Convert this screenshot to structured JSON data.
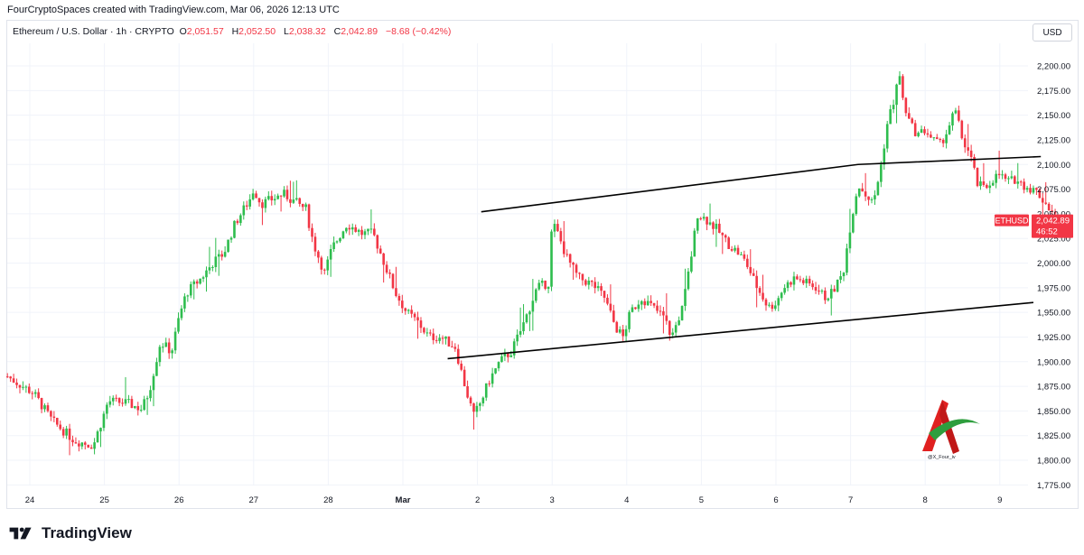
{
  "header": {
    "attribution": "FourCryptoSpaces created with TradingView.com, Mar 06, 2026 12:13 UTC"
  },
  "legend": {
    "symbol": "Ethereum / U.S. Dollar · 1h · CRYPTO",
    "o_label": "O",
    "o_value": "2,051.57",
    "h_label": "H",
    "h_value": "2,052.50",
    "l_label": "L",
    "l_value": "2,038.32",
    "c_label": "C",
    "c_value": "2,042.89",
    "change": "−8.68 (−0.42%)"
  },
  "currency_button": "USD",
  "price_tag": {
    "symbol": "ETHUSD",
    "price": "2,042.89",
    "countdown": "46:52"
  },
  "watermark": {
    "handle": "@X_Four_iv"
  },
  "brand": {
    "name": "TradingView"
  },
  "colors": {
    "up": "#22ab94",
    "up_bright": "#2ebd4e",
    "down": "#f23645",
    "grid": "#f0f3fa",
    "line": "#000000"
  },
  "chart_data": {
    "type": "candlestick",
    "symbol": "ETHUSD",
    "interval": "1h",
    "y_range": [
      1765,
      2210
    ],
    "y_ticks": [
      "2,200.00",
      "2,175.00",
      "2,150.00",
      "2,125.00",
      "2,100.00",
      "2,075.00",
      "2,050.00",
      "2,025.00",
      "2,000.00",
      "1,975.00",
      "1,950.00",
      "1,925.00",
      "1,900.00",
      "1,875.00",
      "1,850.00",
      "1,825.00",
      "1,800.00",
      "1,775.00"
    ],
    "y_tick_values": [
      2200,
      2175,
      2150,
      2125,
      2100,
      2075,
      2050,
      2025,
      2000,
      1975,
      1950,
      1925,
      1900,
      1875,
      1850,
      1825,
      1800,
      1775
    ],
    "x_ticks": [
      "24",
      "25",
      "26",
      "27",
      "28",
      "Mar",
      "2",
      "3",
      "4",
      "5",
      "6",
      "7",
      "8",
      "9"
    ],
    "x_tick_days": [
      0,
      1,
      2,
      3,
      4,
      5,
      6,
      7,
      8,
      9,
      10,
      11,
      12,
      13
    ],
    "series_keypoints_day_price": [
      [
        -0.3,
        1885
      ],
      [
        0.05,
        1868
      ],
      [
        0.3,
        1840
      ],
      [
        0.6,
        1820
      ],
      [
        0.85,
        1815
      ],
      [
        1.0,
        1848
      ],
      [
        1.05,
        1860
      ],
      [
        1.3,
        1858
      ],
      [
        1.5,
        1852
      ],
      [
        1.6,
        1870
      ],
      [
        1.75,
        1920
      ],
      [
        1.9,
        1910
      ],
      [
        2.0,
        1945
      ],
      [
        2.1,
        1970
      ],
      [
        2.3,
        1985
      ],
      [
        2.45,
        2000
      ],
      [
        2.6,
        2010
      ],
      [
        2.75,
        2040
      ],
      [
        2.95,
        2065
      ],
      [
        3.0,
        2075
      ],
      [
        3.1,
        2060
      ],
      [
        3.25,
        2065
      ],
      [
        3.4,
        2070
      ],
      [
        3.55,
        2062
      ],
      [
        3.7,
        2055
      ],
      [
        3.8,
        2020
      ],
      [
        3.95,
        1990
      ],
      [
        4.05,
        2015
      ],
      [
        4.25,
        2040
      ],
      [
        4.45,
        2030
      ],
      [
        4.6,
        2030
      ],
      [
        4.7,
        2010
      ],
      [
        4.8,
        1990
      ],
      [
        4.9,
        1970
      ],
      [
        5.05,
        1950
      ],
      [
        5.2,
        1940
      ],
      [
        5.35,
        1925
      ],
      [
        5.5,
        1925
      ],
      [
        5.6,
        1920
      ],
      [
        5.7,
        1915
      ],
      [
        5.75,
        1900
      ],
      [
        5.85,
        1870
      ],
      [
        5.95,
        1845
      ],
      [
        6.05,
        1860
      ],
      [
        6.15,
        1880
      ],
      [
        6.3,
        1900
      ],
      [
        6.45,
        1910
      ],
      [
        6.6,
        1935
      ],
      [
        6.8,
        1975
      ],
      [
        6.95,
        1980
      ],
      [
        7.0,
        2040
      ],
      [
        7.05,
        2035
      ],
      [
        7.2,
        2005
      ],
      [
        7.35,
        1985
      ],
      [
        7.55,
        1978
      ],
      [
        7.7,
        1965
      ],
      [
        7.85,
        1935
      ],
      [
        7.95,
        1925
      ],
      [
        8.05,
        1950
      ],
      [
        8.2,
        1965
      ],
      [
        8.35,
        1955
      ],
      [
        8.5,
        1945
      ],
      [
        8.6,
        1925
      ],
      [
        8.75,
        1955
      ],
      [
        8.85,
        2000
      ],
      [
        8.95,
        2050
      ],
      [
        9.05,
        2045
      ],
      [
        9.2,
        2035
      ],
      [
        9.35,
        2020
      ],
      [
        9.5,
        2010
      ],
      [
        9.6,
        2000
      ],
      [
        9.75,
        1975
      ],
      [
        9.9,
        1955
      ],
      [
        10.0,
        1960
      ],
      [
        10.1,
        1975
      ],
      [
        10.25,
        1985
      ],
      [
        10.4,
        1980
      ],
      [
        10.55,
        1975
      ],
      [
        10.65,
        1965
      ],
      [
        10.75,
        1970
      ],
      [
        10.9,
        1990
      ],
      [
        11.0,
        2040
      ],
      [
        11.1,
        2080
      ],
      [
        11.2,
        2070
      ],
      [
        11.3,
        2060
      ],
      [
        11.4,
        2095
      ],
      [
        11.5,
        2145
      ],
      [
        11.6,
        2170
      ],
      [
        11.65,
        2195
      ],
      [
        11.7,
        2165
      ],
      [
        11.8,
        2140
      ],
      [
        11.9,
        2130
      ],
      [
        12.0,
        2135
      ],
      [
        12.1,
        2125
      ],
      [
        12.2,
        2120
      ],
      [
        12.3,
        2135
      ],
      [
        12.4,
        2155
      ],
      [
        12.5,
        2125
      ],
      [
        12.6,
        2110
      ],
      [
        12.7,
        2080
      ],
      [
        12.8,
        2075
      ],
      [
        12.9,
        2085
      ],
      [
        13.0,
        2090
      ],
      [
        13.1,
        2082
      ],
      [
        13.2,
        2085
      ],
      [
        13.3,
        2080
      ],
      [
        13.4,
        2076
      ],
      [
        13.5,
        2072
      ],
      [
        13.6,
        2062
      ],
      [
        13.7,
        2052
      ],
      [
        13.78,
        2043
      ]
    ],
    "trendlines": [
      {
        "name": "upper-channel",
        "points": [
          [
            6.05,
            2052
          ],
          [
            11.1,
            2100
          ],
          [
            13.55,
            2108
          ]
        ]
      },
      {
        "name": "lower-channel",
        "points": [
          [
            5.6,
            1903
          ],
          [
            13.45,
            1960
          ]
        ]
      }
    ],
    "last_price": 2042.89
  }
}
